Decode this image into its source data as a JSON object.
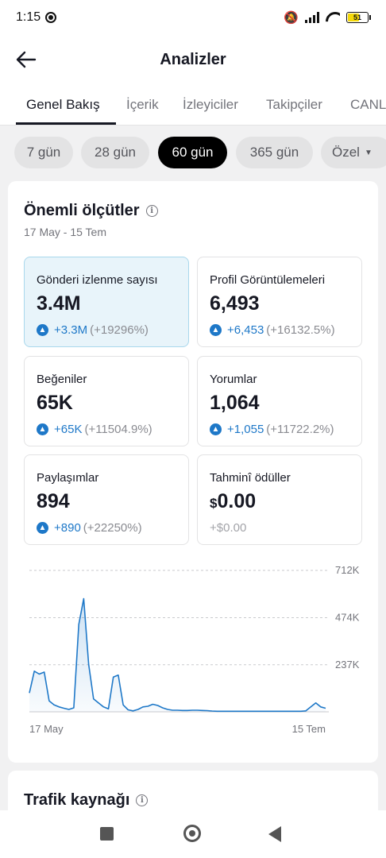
{
  "status_bar": {
    "time": "1:15",
    "battery": "51",
    "icons": [
      "screen-record-icon",
      "bell-off-icon",
      "signal-icon",
      "wifi-icon",
      "battery-icon"
    ]
  },
  "header": {
    "title": "Analizler"
  },
  "tabs": [
    {
      "label": "Genel Bakış",
      "active": true
    },
    {
      "label": "İçerik"
    },
    {
      "label": "İzleyiciler"
    },
    {
      "label": "Takipçiler"
    },
    {
      "label": "CANLI"
    }
  ],
  "ranges": [
    {
      "label": "7 gün"
    },
    {
      "label": "28 gün"
    },
    {
      "label": "60 gün",
      "active": true
    },
    {
      "label": "365 gün"
    },
    {
      "label": "Özel"
    }
  ],
  "key_metrics": {
    "title": "Önemli ölçütler",
    "date_range": "17 May - 15 Tem",
    "items": [
      {
        "label": "Gönderi izlenme sayısı",
        "value": "3.4M",
        "delta": "+3.3M",
        "pct": "(+19296%)",
        "selected": true
      },
      {
        "label": "Profil Görüntülemeleri",
        "value": "6,493",
        "delta": "+6,453",
        "pct": "(+16132.5%)"
      },
      {
        "label": "Beğeniler",
        "value": "65K",
        "delta": "+65K",
        "pct": "(+11504.9%)"
      },
      {
        "label": "Yorumlar",
        "value": "1,064",
        "delta": "+1,055",
        "pct": "(+11722.2%)"
      },
      {
        "label": "Paylaşımlar",
        "value": "894",
        "delta": "+890",
        "pct": "(+22250%)"
      },
      {
        "label": "Tahminî ödüller",
        "currency": "$",
        "value": "0.00",
        "change": "+$0.00"
      }
    ]
  },
  "chart_data": {
    "type": "area",
    "x_labels": [
      "17 May",
      "15 Tem"
    ],
    "y_ticks": [
      "712K",
      "474K",
      "237K"
    ],
    "y_tick_values": [
      712000,
      474000,
      237000
    ],
    "ylim": [
      0,
      712000
    ],
    "grid": true,
    "color": "#1e78c8",
    "values": [
      95000,
      205000,
      190000,
      200000,
      55000,
      35000,
      25000,
      18000,
      12000,
      20000,
      440000,
      570000,
      240000,
      65000,
      45000,
      25000,
      15000,
      175000,
      185000,
      35000,
      10000,
      5000,
      12000,
      25000,
      28000,
      38000,
      32000,
      20000,
      12000,
      8000,
      8000,
      7000,
      7000,
      8000,
      8000,
      7000,
      6000,
      4000,
      3000,
      3000,
      3000,
      3000,
      3000,
      3000,
      3000,
      3000,
      3000,
      3000,
      3000,
      3000,
      3000,
      3000,
      3000,
      3000,
      3000,
      3000,
      5000,
      25000,
      45000,
      25000,
      18000
    ]
  },
  "traffic": {
    "title": "Trafik kaynağı"
  }
}
